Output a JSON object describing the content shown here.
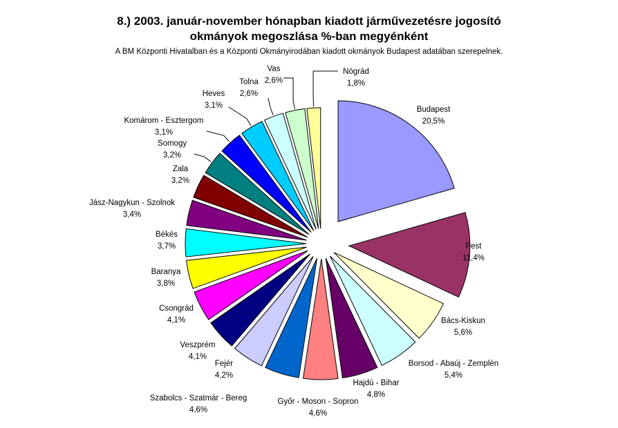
{
  "chart_data": {
    "type": "pie",
    "title": "8.) 2003. január-november hónapban  kiadott járművezetésre  jogosító\nokmányok megoszlása %-ban  megyénként",
    "subtitle": "A BM Központi Hivatalban és a Központi Okmányirodában kiadott okmányok Budapest adatában szerepelnek.",
    "slices": [
      {
        "name": "Budapest",
        "value": 20.5,
        "label": "20,5%",
        "color": "#9999ff"
      },
      {
        "name": "Pest",
        "value": 11.4,
        "label": "11,4%",
        "color": "#993366"
      },
      {
        "name": "Bács-Kiskun",
        "value": 5.6,
        "label": "5,6%",
        "color": "#ffffcc"
      },
      {
        "name": "Borsod - Abaúj - Zemplén",
        "value": 5.4,
        "label": "5,4%",
        "color": "#ccffff"
      },
      {
        "name": "Hajdú - Bihar",
        "value": 4.8,
        "label": "4,8%",
        "color": "#660066"
      },
      {
        "name": "Győr - Moson - Sopron",
        "value": 4.6,
        "label": "4,6%",
        "color": "#ff8080"
      },
      {
        "name": "Szabolcs - Szatmár - Bereg",
        "value": 4.6,
        "label": "4,6%",
        "color": "#0066cc"
      },
      {
        "name": "Fejér",
        "value": 4.2,
        "label": "4,2%",
        "color": "#ccccff"
      },
      {
        "name": "Veszprém",
        "value": 4.1,
        "label": "4,1%",
        "color": "#000080"
      },
      {
        "name": "Csongrád",
        "value": 4.1,
        "label": "4,1%",
        "color": "#ff00ff"
      },
      {
        "name": "Baranya",
        "value": 3.8,
        "label": "3,8%",
        "color": "#ffff00"
      },
      {
        "name": "Békés",
        "value": 3.7,
        "label": "3,7%",
        "color": "#00ffff"
      },
      {
        "name": "Jász-Nagykun - Szolnok",
        "value": 3.4,
        "label": "3,4%",
        "color": "#800080"
      },
      {
        "name": "Zala",
        "value": 3.2,
        "label": "3,2%",
        "color": "#800000"
      },
      {
        "name": "Somogy",
        "value": 3.2,
        "label": "3,2%",
        "color": "#008080"
      },
      {
        "name": "Komárom - Esztergom",
        "value": 3.1,
        "label": "3,1%",
        "color": "#0000ff"
      },
      {
        "name": "Heves",
        "value": 3.1,
        "label": "3,1%",
        "color": "#00ccff"
      },
      {
        "name": "Tolna",
        "value": 2.6,
        "label": "2,6%",
        "color": "#ccffff"
      },
      {
        "name": "Vas",
        "value": 2.6,
        "label": "2,6%",
        "color": "#ccffcc"
      },
      {
        "name": "Nógrád",
        "value": 1.8,
        "label": "1,8%",
        "color": "#ffff99"
      }
    ],
    "legend": "none"
  }
}
